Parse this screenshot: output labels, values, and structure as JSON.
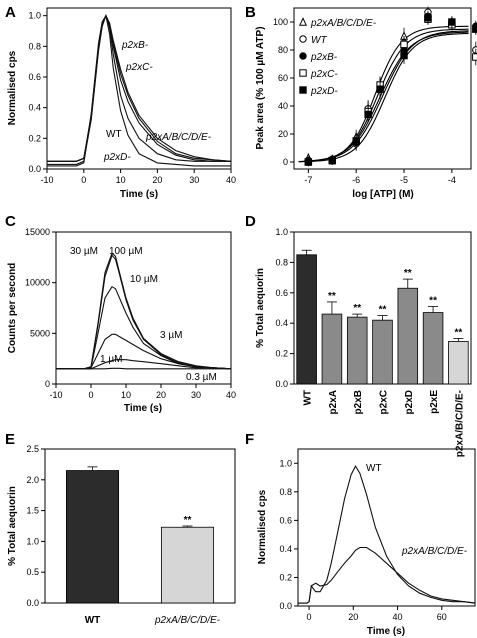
{
  "chart_data": [
    {
      "panel": "A",
      "type": "line",
      "xlabel": "Time (s)",
      "ylabel": "Normalised cps",
      "xlim": [
        -10,
        40
      ],
      "ylim": [
        0,
        1.05
      ],
      "xticks": [
        -10,
        0,
        10,
        20,
        30,
        40
      ],
      "yticks": [
        0.0,
        0.2,
        0.4,
        0.6,
        0.8,
        1.0
      ],
      "annotations": [
        "p2xB-",
        "p2xC-",
        "WT",
        "p2xA/B/C/D/E-",
        "p2xD-"
      ],
      "series": [
        {
          "name": "WT",
          "x": [
            -10,
            -2,
            0,
            2,
            4,
            5,
            6,
            7,
            8,
            10,
            12,
            15,
            20,
            25,
            30,
            35,
            40
          ],
          "values": [
            0.05,
            0.05,
            0.07,
            0.35,
            0.8,
            0.95,
            1.0,
            0.92,
            0.75,
            0.48,
            0.33,
            0.2,
            0.1,
            0.06,
            0.05,
            0.05,
            0.05
          ]
        },
        {
          "name": "p2xB-",
          "x": [
            -10,
            -2,
            0,
            2,
            4,
            5,
            6,
            7,
            8,
            10,
            12,
            15,
            20,
            25,
            30,
            35,
            40
          ],
          "values": [
            0.05,
            0.05,
            0.07,
            0.33,
            0.78,
            0.94,
            1.0,
            0.95,
            0.82,
            0.62,
            0.48,
            0.33,
            0.18,
            0.1,
            0.07,
            0.06,
            0.05
          ]
        },
        {
          "name": "p2xC-",
          "x": [
            -10,
            -2,
            0,
            2,
            4,
            5,
            6,
            7,
            8,
            10,
            12,
            15,
            20,
            25,
            30,
            35,
            40
          ],
          "values": [
            0.05,
            0.05,
            0.07,
            0.34,
            0.79,
            0.94,
            1.0,
            0.94,
            0.8,
            0.58,
            0.44,
            0.3,
            0.16,
            0.09,
            0.06,
            0.05,
            0.05
          ]
        },
        {
          "name": "p2xA/B/C/D/E-",
          "x": [
            -10,
            -2,
            0,
            2,
            4,
            5,
            6,
            7,
            8,
            10,
            12,
            15,
            20,
            25,
            30,
            35,
            40
          ],
          "values": [
            0.03,
            0.03,
            0.05,
            0.32,
            0.77,
            0.93,
            1.0,
            0.95,
            0.84,
            0.65,
            0.5,
            0.35,
            0.2,
            0.12,
            0.08,
            0.06,
            0.05
          ]
        },
        {
          "name": "p2xD-",
          "x": [
            -10,
            -2,
            0,
            2,
            4,
            5,
            6,
            7,
            8,
            10,
            12,
            15,
            20,
            25,
            30,
            35,
            40
          ],
          "values": [
            0.02,
            0.02,
            0.04,
            0.36,
            0.82,
            0.96,
            1.0,
            0.88,
            0.66,
            0.38,
            0.22,
            0.1,
            0.04,
            0.03,
            0.02,
            0.02,
            0.02
          ]
        }
      ]
    },
    {
      "panel": "B",
      "type": "scatter",
      "xlabel": "log [ATP] (M)",
      "ylabel": "Peak area (% 100 µM ATP)",
      "xlim": [
        -7.3,
        -3.6
      ],
      "ylim": [
        -5,
        110
      ],
      "xticks": [
        -7,
        -6,
        -5,
        -4
      ],
      "yticks": [
        0,
        20,
        40,
        60,
        80,
        100
      ],
      "legend": [
        "p2xA/B/C/D/E-",
        "WT",
        "p2xB-",
        "p2xC-",
        "p2xD-"
      ],
      "x": [
        -7,
        -6.5,
        -6,
        -5.75,
        -5.5,
        -5,
        -4.5,
        -4,
        -3.5
      ],
      "series": [
        {
          "name": "p2xA/B/C/D/E-",
          "marker": "open-triangle",
          "values": [
            3,
            2,
            18,
            38,
            54,
            90,
            104,
            100,
            95
          ],
          "errors": [
            3,
            3,
            5,
            6,
            6,
            6,
            4,
            4,
            4
          ]
        },
        {
          "name": "WT",
          "marker": "open-circle",
          "values": [
            1,
            1,
            13,
            38,
            53,
            85,
            107,
            100,
            80
          ],
          "errors": [
            3,
            3,
            5,
            6,
            8,
            5,
            4,
            4,
            6
          ]
        },
        {
          "name": "p2xB-",
          "marker": "filled-circle",
          "values": [
            0,
            2,
            14,
            35,
            52,
            80,
            104,
            98,
            97
          ],
          "errors": [
            3,
            3,
            5,
            6,
            6,
            6,
            4,
            4,
            4
          ]
        },
        {
          "name": "p2xC-",
          "marker": "open-square",
          "values": [
            0,
            1,
            15,
            36,
            55,
            84,
            102,
            98,
            75
          ],
          "errors": [
            3,
            3,
            5,
            6,
            6,
            6,
            4,
            4,
            6
          ]
        },
        {
          "name": "p2xD-",
          "marker": "filled-square",
          "values": [
            0,
            1,
            15,
            34,
            52,
            76,
            103,
            100,
            95
          ],
          "errors": [
            3,
            3,
            5,
            6,
            6,
            6,
            4,
            4,
            4
          ]
        }
      ],
      "fits": [
        {
          "name": "p2xA/B/C/D/E-",
          "top": 97,
          "ec50_log": -5.6,
          "hill": 1.6
        },
        {
          "name": "WT",
          "top": 95,
          "ec50_log": -5.55,
          "hill": 1.5
        },
        {
          "name": "p2xB-",
          "top": 93,
          "ec50_log": -5.5,
          "hill": 1.4
        },
        {
          "name": "p2xC-",
          "top": 94,
          "ec50_log": -5.45,
          "hill": 1.4
        },
        {
          "name": "p2xD-",
          "top": 92,
          "ec50_log": -5.4,
          "hill": 1.5
        }
      ]
    },
    {
      "panel": "C",
      "type": "line",
      "xlabel": "Time (s)",
      "ylabel": "Counts per second",
      "xlim": [
        -10,
        40
      ],
      "ylim": [
        0,
        15000
      ],
      "xticks": [
        -10,
        0,
        10,
        20,
        30,
        40
      ],
      "yticks": [
        0,
        5000,
        10000,
        15000
      ],
      "x": [
        -10,
        -2,
        0,
        2,
        4,
        6,
        7,
        8,
        10,
        12,
        15,
        20,
        25,
        30,
        35,
        40
      ],
      "series": [
        {
          "name": "100 µM",
          "values": [
            1500,
            1500,
            1700,
            6000,
            11000,
            12900,
            12600,
            11200,
            8500,
            6500,
            4500,
            3000,
            2200,
            1800,
            1600,
            1500
          ]
        },
        {
          "name": "30 µM",
          "values": [
            1500,
            1500,
            1700,
            5800,
            10600,
            12700,
            12300,
            11000,
            8300,
            6300,
            4400,
            2900,
            2100,
            1700,
            1600,
            1500
          ]
        },
        {
          "name": "10 µM",
          "values": [
            1500,
            1500,
            1600,
            5000,
            8500,
            9600,
            9400,
            8600,
            7000,
            5600,
            4000,
            2800,
            2000,
            1700,
            1600,
            1500
          ]
        },
        {
          "name": "3 µM",
          "values": [
            1500,
            1500,
            1600,
            3000,
            4400,
            4900,
            4900,
            4700,
            4300,
            3900,
            3300,
            2500,
            2000,
            1700,
            1600,
            1500
          ]
        },
        {
          "name": "1 µM",
          "values": [
            1500,
            1500,
            1500,
            1800,
            2100,
            2300,
            2400,
            2400,
            2400,
            2300,
            2200,
            2000,
            1800,
            1600,
            1600,
            1500
          ]
        },
        {
          "name": "0.3 µM",
          "values": [
            1500,
            1500,
            1500,
            1500,
            1500,
            1550,
            1550,
            1550,
            1500,
            1500,
            1500,
            1500,
            1500,
            1500,
            1500,
            1500
          ]
        }
      ],
      "annotations": [
        "30 µM",
        "100 µM",
        "10 µM",
        "3 µM",
        "1 µM",
        "0.3 µM"
      ]
    },
    {
      "panel": "D",
      "type": "bar",
      "ylabel": "% Total aequorin",
      "ylim": [
        0,
        1.0
      ],
      "yticks": [
        0.0,
        0.2,
        0.4,
        0.6,
        0.8,
        1.0
      ],
      "categories": [
        "WT",
        "p2xA",
        "p2xB",
        "p2xC",
        "p2xD",
        "p2xE",
        "p2xA/B/C/D/E-"
      ],
      "values": [
        0.85,
        0.46,
        0.44,
        0.42,
        0.63,
        0.47,
        0.28
      ],
      "errors": [
        0.03,
        0.08,
        0.02,
        0.03,
        0.06,
        0.04,
        0.02
      ],
      "significance": [
        "",
        "**",
        "**",
        "**",
        "**",
        "**",
        "**"
      ],
      "colors": [
        "#2c2c2c",
        "#8a8a8a",
        "#8a8a8a",
        "#8a8a8a",
        "#8a8a8a",
        "#8a8a8a",
        "#d6d6d6"
      ]
    },
    {
      "panel": "E",
      "type": "bar",
      "ylabel": "% Total aequorin",
      "ylim": [
        0,
        2.5
      ],
      "yticks": [
        0.0,
        0.5,
        1.0,
        1.5,
        2.0,
        2.5
      ],
      "categories": [
        "WT",
        "p2xA/B/C/D/E-"
      ],
      "values": [
        2.15,
        1.23
      ],
      "errors": [
        0.06,
        0.02
      ],
      "significance": [
        "",
        "**"
      ],
      "colors": [
        "#2c2c2c",
        "#d6d6d6"
      ]
    },
    {
      "panel": "F",
      "type": "line",
      "xlabel": "Time (s)",
      "ylabel": "Normalised cps",
      "xlim": [
        -5,
        75
      ],
      "ylim": [
        0,
        1.1
      ],
      "xticks": [
        0,
        20,
        40,
        60
      ],
      "yticks": [
        0.0,
        0.2,
        0.4,
        0.6,
        0.8,
        1.0
      ],
      "annotations": [
        "WT",
        "p2xA/B/C/D/E-"
      ],
      "series": [
        {
          "name": "WT",
          "x": [
            -5,
            -1,
            0,
            1,
            3,
            5,
            8,
            10,
            13,
            16,
            19,
            21,
            23,
            26,
            30,
            35,
            40,
            45,
            50,
            55,
            60,
            65,
            70,
            75
          ],
          "values": [
            0.02,
            0.02,
            0.03,
            0.14,
            0.1,
            0.1,
            0.18,
            0.3,
            0.52,
            0.75,
            0.92,
            0.98,
            0.93,
            0.78,
            0.55,
            0.35,
            0.22,
            0.14,
            0.09,
            0.06,
            0.04,
            0.03,
            0.03,
            0.02
          ]
        },
        {
          "name": "p2xA/B/C/D/E-",
          "x": [
            -5,
            -1,
            0,
            1,
            3,
            5,
            8,
            10,
            13,
            16,
            19,
            21,
            23,
            26,
            30,
            35,
            40,
            45,
            50,
            55,
            60,
            65,
            70,
            75
          ],
          "values": [
            0.02,
            0.02,
            0.03,
            0.14,
            0.16,
            0.14,
            0.15,
            0.18,
            0.24,
            0.3,
            0.35,
            0.39,
            0.41,
            0.41,
            0.37,
            0.3,
            0.23,
            0.16,
            0.11,
            0.07,
            0.05,
            0.04,
            0.03,
            0.02
          ]
        }
      ]
    }
  ]
}
